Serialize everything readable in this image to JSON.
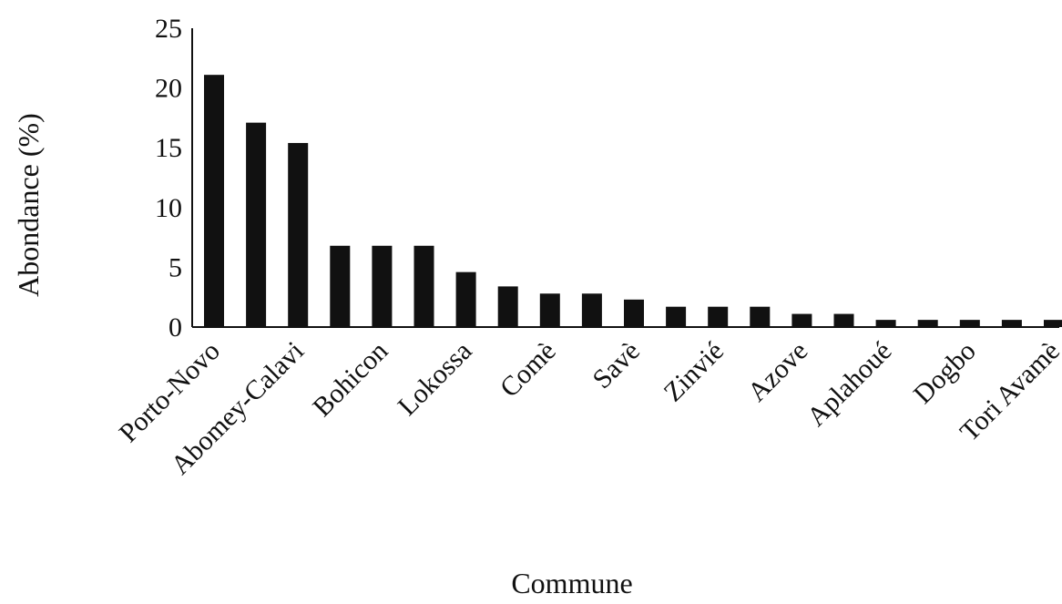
{
  "chart_data": {
    "type": "bar",
    "title": "",
    "xlabel": "Commune",
    "ylabel": "Abondance (%)",
    "ylim": [
      0,
      25
    ],
    "yticks": [
      0,
      5,
      10,
      15,
      20,
      25
    ],
    "grid": false,
    "categories": [
      "Porto-Novo",
      "",
      "Abomey-Calavi",
      "",
      "Bohicon",
      "",
      "Lokossa",
      "",
      "Comè",
      "",
      "Savè",
      "",
      "Zinvié",
      "",
      "Azove",
      "",
      "Aplahoué",
      "",
      "Dogbo",
      "",
      "Tori Avamè"
    ],
    "values": [
      21.1,
      17.1,
      15.4,
      6.8,
      6.8,
      6.8,
      4.6,
      3.4,
      2.8,
      2.8,
      2.3,
      1.7,
      1.7,
      1.7,
      1.1,
      1.1,
      0.6,
      0.6,
      0.6,
      0.6,
      0.6
    ]
  }
}
